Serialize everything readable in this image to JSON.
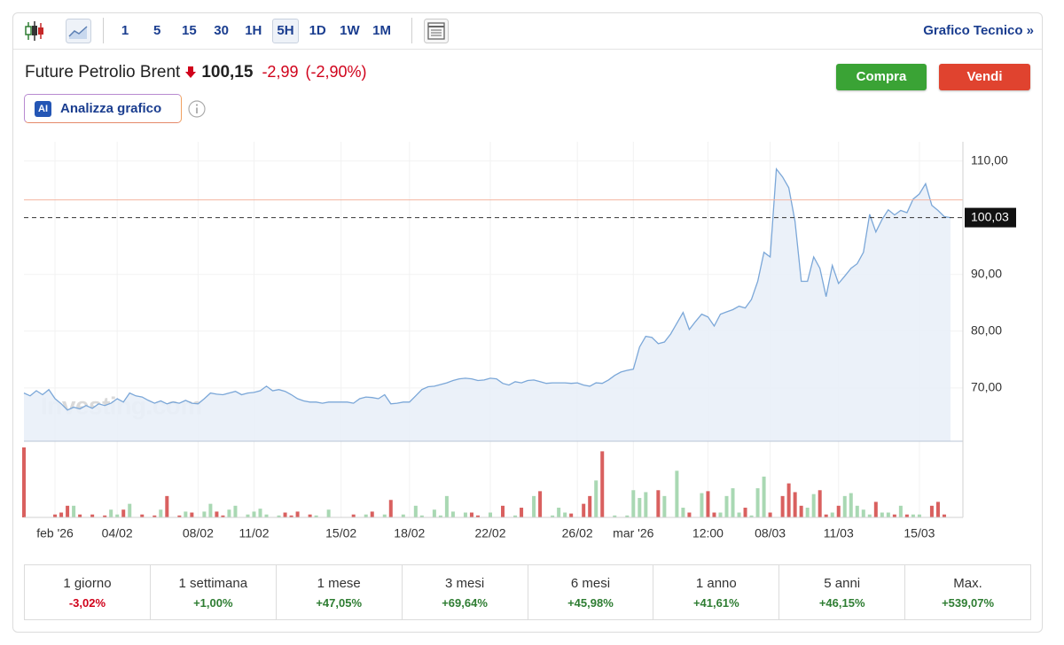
{
  "toolbar": {
    "intervals": [
      "1",
      "5",
      "15",
      "30",
      "1H",
      "5H",
      "1D",
      "1W",
      "1M"
    ],
    "selected_interval": "5H",
    "technical_link": "Grafico Tecnico »"
  },
  "header": {
    "title": "Future Petrolio Brent",
    "price": "100,15",
    "change": "-2,99",
    "change_percent": "(-2,90%)"
  },
  "buttons": {
    "buy": "Compra",
    "sell": "Vendi"
  },
  "ai_button": {
    "badge": "AI",
    "label": "Analizza grafico"
  },
  "chart_data": {
    "type": "area",
    "color": "#7ba7d8",
    "fill_color": "#e9eff8",
    "values": [
      69.1,
      68.6,
      69.5,
      68.8,
      69.7,
      68.1,
      67.2,
      66.1,
      66.6,
      66.3,
      66.9,
      66.4,
      67.2,
      66.9,
      67.3,
      68.1,
      67.5,
      69.1,
      68.6,
      68.4,
      67.8,
      67.3,
      67.7,
      67.2,
      67.5,
      67.3,
      67.8,
      67.3,
      67.2,
      68.1,
      69.1,
      68.9,
      68.8,
      69.1,
      69.4,
      68.8,
      69.1,
      69.2,
      69.5,
      70.3,
      69.5,
      69.7,
      69.4,
      68.8,
      68.1,
      67.7,
      67.5,
      67.5,
      67.3,
      67.5,
      67.5,
      67.5,
      67.5,
      67.3,
      68.1,
      68.4,
      68.3,
      68.1,
      68.8,
      67.2,
      67.3,
      67.5,
      67.5,
      68.6,
      69.7,
      70.2,
      70.3,
      70.6,
      70.9,
      71.3,
      71.6,
      71.7,
      71.6,
      71.3,
      71.4,
      71.7,
      71.6,
      70.8,
      70.5,
      71.1,
      70.9,
      71.3,
      71.4,
      71.1,
      70.8,
      70.9,
      70.9,
      70.9,
      70.8,
      70.9,
      70.5,
      70.3,
      70.9,
      70.8,
      71.4,
      72.2,
      72.8,
      73.1,
      73.3,
      77.2,
      79.1,
      78.9,
      77.8,
      78.1,
      79.5,
      81.4,
      83.3,
      80.3,
      81.7,
      83.0,
      82.5,
      80.9,
      83.0,
      83.4,
      83.8,
      84.4,
      84.1,
      85.6,
      88.8,
      93.9,
      93.1,
      108.6,
      107.2,
      105.3,
      99.4,
      88.8,
      88.8,
      93.1,
      91.1,
      86.1,
      91.6,
      88.4,
      89.7,
      91.1,
      91.9,
      93.9,
      100.6,
      97.5,
      99.7,
      101.4,
      100.5,
      101.3,
      100.9,
      103.3,
      104.2,
      106.0,
      102.2,
      101.3,
      100.2,
      100.03
    ],
    "volume": [
      72,
      0,
      0,
      0,
      0,
      3,
      5,
      12,
      12,
      3,
      0,
      3,
      0,
      2,
      8,
      3,
      8,
      14,
      0,
      3,
      0,
      2,
      8,
      22,
      0,
      2,
      6,
      5,
      0,
      6,
      14,
      6,
      2,
      8,
      12,
      0,
      3,
      6,
      9,
      3,
      0,
      2,
      5,
      2,
      6,
      0,
      3,
      2,
      0,
      8,
      0,
      0,
      0,
      3,
      0,
      3,
      6,
      0,
      3,
      18,
      0,
      3,
      0,
      12,
      2,
      0,
      8,
      2,
      22,
      6,
      0,
      5,
      5,
      2,
      0,
      5,
      0,
      12,
      0,
      2,
      10,
      0,
      22,
      27,
      0,
      2,
      10,
      5,
      4,
      0,
      14,
      22,
      38,
      68,
      0,
      2,
      0,
      2,
      28,
      20,
      26,
      0,
      28,
      22,
      0,
      48,
      10,
      5,
      0,
      25,
      27,
      5,
      5,
      22,
      30,
      5,
      10,
      2,
      30,
      42,
      5,
      0,
      22,
      35,
      26,
      12,
      10,
      24,
      28,
      3,
      5,
      12,
      22,
      25,
      12,
      8,
      3,
      16,
      5,
      5,
      3,
      12,
      3,
      3,
      3,
      0,
      12,
      16,
      3,
      0
    ],
    "up_color": "#a9d8b3",
    "down_color": "#d9605f",
    "xlim": [
      0,
      151
    ],
    "xticks": [
      {
        "value": 5,
        "label": "feb '26"
      },
      {
        "value": 15,
        "label": "04/02"
      },
      {
        "value": 28,
        "label": "08/02"
      },
      {
        "value": 37,
        "label": "11/02"
      },
      {
        "value": 51,
        "label": "15/02"
      },
      {
        "value": 62,
        "label": "18/02"
      },
      {
        "value": 75,
        "label": "22/02"
      },
      {
        "value": 89,
        "label": "26/02"
      },
      {
        "value": 98,
        "label": "mar '26"
      },
      {
        "value": 110,
        "label": "12:00"
      },
      {
        "value": 120,
        "label": "08/03"
      },
      {
        "value": 131,
        "label": "11/03"
      },
      {
        "value": 144,
        "label": "15/03"
      }
    ],
    "ylim": [
      60.6,
      113.4
    ],
    "yticks": [
      {
        "value": 70,
        "label": "70,00"
      },
      {
        "value": 80,
        "label": "80,00"
      },
      {
        "value": 90,
        "label": "90,00"
      },
      {
        "value": 110,
        "label": "110,00"
      }
    ],
    "reference_line": 103.14,
    "last_value": {
      "value": 100.03,
      "label": "100,03"
    },
    "watermark": "Investing.com",
    "grid": true
  },
  "performance": [
    {
      "period": "1 giorno",
      "change": "-3,02%"
    },
    {
      "period": "1 settimana",
      "change": "+1,00%"
    },
    {
      "period": "1 mese",
      "change": "+47,05%"
    },
    {
      "period": "3 mesi",
      "change": "+69,64%"
    },
    {
      "period": "6 mesi",
      "change": "+45,98%"
    },
    {
      "period": "1 anno",
      "change": "+41,61%"
    },
    {
      "period": "5 anni",
      "change": "+46,15%"
    },
    {
      "period": "Max.",
      "change": "+539,07%"
    }
  ]
}
